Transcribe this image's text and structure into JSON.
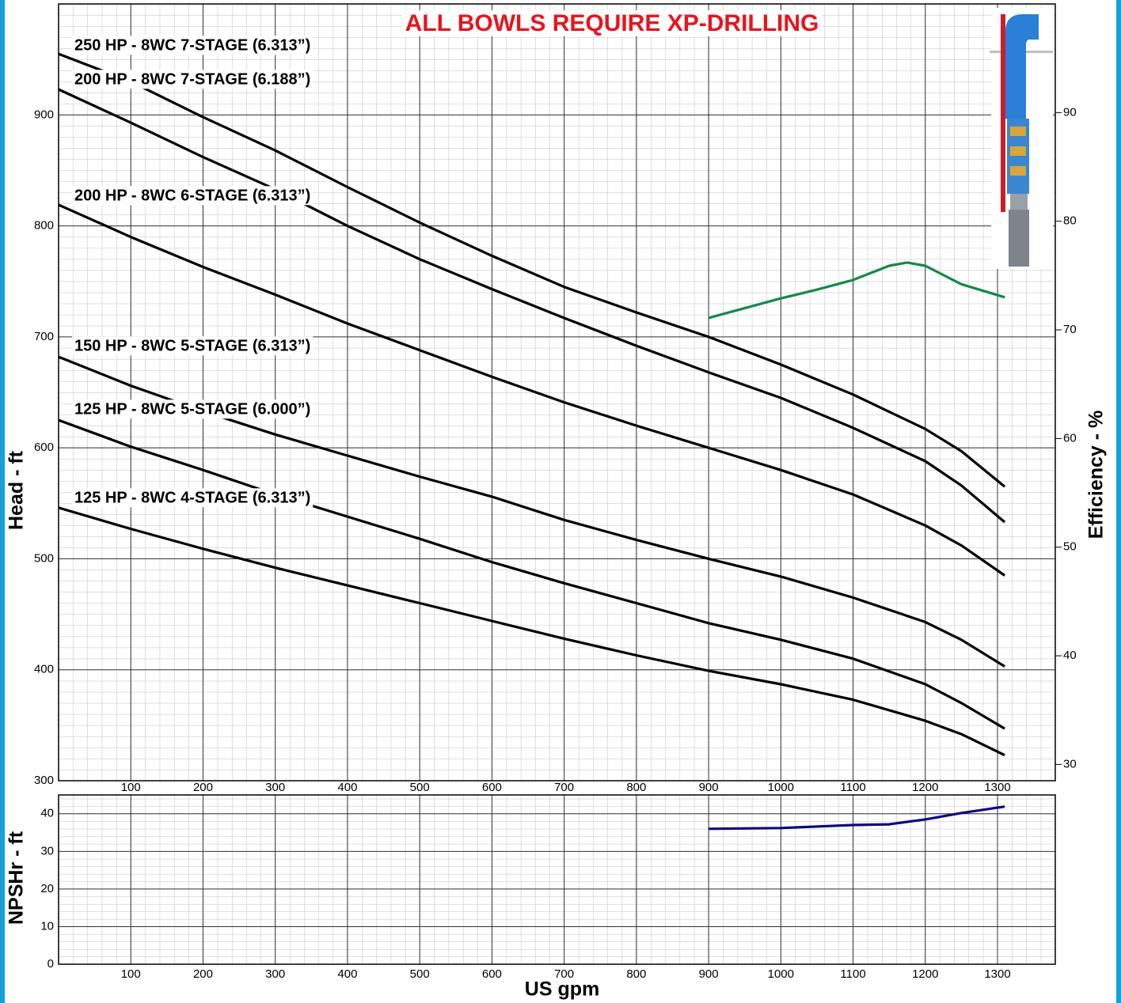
{
  "chart_data": [
    {
      "type": "line",
      "title": "ALL BOWLS REQUIRE XP-DRILLING",
      "ylabel": "Head - ft",
      "y2label": "Efficiency - %",
      "xlim": [
        0,
        1380
      ],
      "xticks": [
        100,
        200,
        300,
        400,
        500,
        600,
        700,
        800,
        900,
        1000,
        1100,
        1200,
        1300
      ],
      "ylim": [
        300,
        1000
      ],
      "yticks": [
        300,
        400,
        500,
        600,
        700,
        800,
        900
      ],
      "y2lim": [
        28.5,
        100
      ],
      "y2ticks": [
        30,
        40,
        50,
        60,
        70,
        80,
        90
      ],
      "grid": true,
      "series": [
        {
          "name": "250 HP - 8WC 7-STAGE (6.313”)",
          "color": "#000000",
          "x": [
            0,
            100,
            200,
            300,
            400,
            500,
            600,
            700,
            800,
            900,
            1000,
            1100,
            1200,
            1250,
            1310
          ],
          "values": [
            955,
            930,
            898,
            868,
            835,
            803,
            773,
            745,
            722,
            700,
            675,
            648,
            617,
            597,
            565
          ]
        },
        {
          "name": "200 HP - 8WC 7-STAGE (6.188”)",
          "color": "#000000",
          "x": [
            0,
            100,
            200,
            300,
            400,
            500,
            600,
            700,
            800,
            900,
            1000,
            1100,
            1200,
            1250,
            1310
          ],
          "values": [
            923,
            893,
            862,
            833,
            800,
            770,
            743,
            717,
            692,
            668,
            645,
            618,
            588,
            566,
            533
          ]
        },
        {
          "name": "200 HP - 8WC 6-STAGE (6.313”)",
          "color": "#000000",
          "x": [
            0,
            100,
            200,
            300,
            400,
            500,
            600,
            700,
            800,
            900,
            1000,
            1100,
            1200,
            1250,
            1310
          ],
          "values": [
            819,
            790,
            763,
            738,
            712,
            688,
            664,
            641,
            620,
            600,
            580,
            558,
            530,
            512,
            485
          ]
        },
        {
          "name": "150 HP - 8WC 5-STAGE (6.313”)",
          "color": "#000000",
          "x": [
            0,
            100,
            200,
            300,
            400,
            500,
            600,
            700,
            800,
            900,
            1000,
            1100,
            1200,
            1250,
            1310
          ],
          "values": [
            682,
            656,
            633,
            612,
            593,
            574,
            556,
            535,
            517,
            500,
            484,
            465,
            443,
            427,
            403
          ]
        },
        {
          "name": "125 HP - 8WC 5-STAGE (6.000”)",
          "color": "#000000",
          "x": [
            0,
            100,
            200,
            300,
            400,
            500,
            600,
            700,
            800,
            900,
            1000,
            1100,
            1200,
            1250,
            1310
          ],
          "values": [
            625,
            601,
            580,
            558,
            538,
            518,
            497,
            478,
            460,
            442,
            427,
            410,
            387,
            370,
            347
          ]
        },
        {
          "name": "125 HP - 8WC 4-STAGE (6.313”)",
          "color": "#000000",
          "x": [
            0,
            100,
            200,
            300,
            400,
            500,
            600,
            700,
            800,
            900,
            1000,
            1100,
            1200,
            1250,
            1310
          ],
          "values": [
            546,
            527,
            509,
            492,
            476,
            460,
            444,
            428,
            413,
            399,
            387,
            373,
            354,
            342,
            323
          ]
        },
        {
          "color": "#138a48",
          "axis": "y2",
          "x": [
            900,
            950,
            1000,
            1050,
            1100,
            1150,
            1175,
            1200,
            1250,
            1310
          ],
          "values": [
            71.1,
            72.0,
            72.9,
            73.7,
            74.6,
            75.9,
            76.2,
            75.9,
            74.2,
            73.0
          ]
        }
      ]
    },
    {
      "type": "line",
      "xlabel": "US gpm",
      "ylabel": "NPSHr - ft",
      "xlim": [
        0,
        1380
      ],
      "xticks": [
        100,
        200,
        300,
        400,
        500,
        600,
        700,
        800,
        900,
        1000,
        1100,
        1200,
        1300
      ],
      "ylim": [
        0,
        45
      ],
      "yticks": [
        0,
        10,
        20,
        30,
        40
      ],
      "grid": true,
      "series": [
        {
          "color": "#0a0a80",
          "x": [
            900,
            1000,
            1100,
            1150,
            1200,
            1250,
            1310
          ],
          "values": [
            36,
            36.2,
            37,
            37.2,
            38.5,
            40.2,
            41.9
          ]
        }
      ]
    }
  ]
}
